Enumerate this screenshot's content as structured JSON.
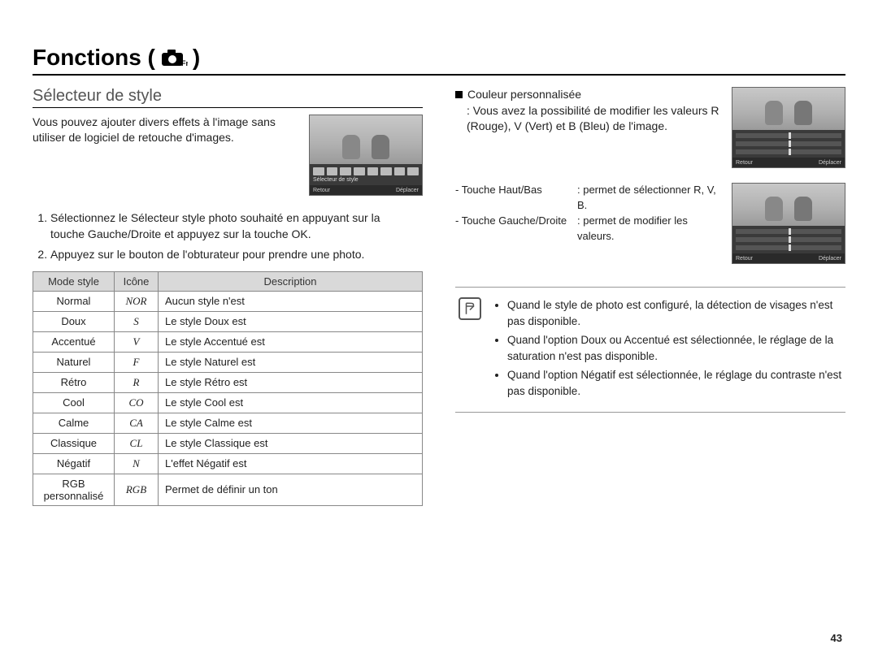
{
  "page": {
    "title_prefix": "Fonctions (",
    "title_suffix": ")",
    "number": "43",
    "icon": "camera-fn-icon"
  },
  "left": {
    "section_title": "Sélecteur de style",
    "intro": "Vous pouvez ajouter divers effets à l'image sans utiliser de logiciel de retouche d'images.",
    "preview": {
      "label": "Sélecteur de style",
      "footer_left": "Retour",
      "footer_right": "Déplacer"
    },
    "steps": [
      "Sélectionnez le Sélecteur style photo souhaité en appuyant sur la touche Gauche/Droite et appuyez sur la touche OK.",
      "Appuyez sur le bouton de l'obturateur pour prendre une photo."
    ],
    "table": {
      "headers": [
        "Mode style",
        "Icône",
        "Description"
      ],
      "rows": [
        {
          "mode": "Normal",
          "icon": "NOR",
          "desc": "Aucun style n'est"
        },
        {
          "mode": "Doux",
          "icon": "S",
          "desc": "Le style Doux est"
        },
        {
          "mode": "Accentué",
          "icon": "V",
          "desc": "Le style Accentué est"
        },
        {
          "mode": "Naturel",
          "icon": "F",
          "desc": "Le style Naturel est"
        },
        {
          "mode": "Rétro",
          "icon": "R",
          "desc": "Le style Rétro est"
        },
        {
          "mode": "Cool",
          "icon": "CO",
          "desc": "Le style Cool est"
        },
        {
          "mode": "Calme",
          "icon": "CA",
          "desc": "Le style Calme est"
        },
        {
          "mode": "Classique",
          "icon": "CL",
          "desc": "Le style Classique est"
        },
        {
          "mode": "Négatif",
          "icon": "N",
          "desc": "L'effet Négatif est"
        },
        {
          "mode": "RGB personnalisé",
          "icon": "RGB",
          "desc": "Permet de définir un ton"
        }
      ]
    }
  },
  "right": {
    "custom_color": {
      "title": "Couleur personnalisée",
      "body": ": Vous avez la possibilité de modifier les valeurs R (Rouge), V (Vert) et B (Bleu) de l'image."
    },
    "preview": {
      "footer_left": "Retour",
      "footer_right": "Déplacer"
    },
    "touches": [
      {
        "key": "- Touche Haut/Bas",
        "val": ": permet de sélectionner R, V, B."
      },
      {
        "key": "- Touche Gauche/Droite",
        "val": ": permet de modifier les valeurs."
      }
    ],
    "notes": [
      "Quand le style de photo est configuré, la détection de visages n'est pas disponible.",
      "Quand l'option Doux ou Accentué est sélectionnée, le réglage de la saturation n'est pas disponible.",
      "Quand l'option Négatif est sélectionnée, le réglage du contraste n'est pas disponible."
    ]
  },
  "colors": {
    "header_bg": "#d9d9d9",
    "border": "#888888",
    "text": "#222222"
  }
}
